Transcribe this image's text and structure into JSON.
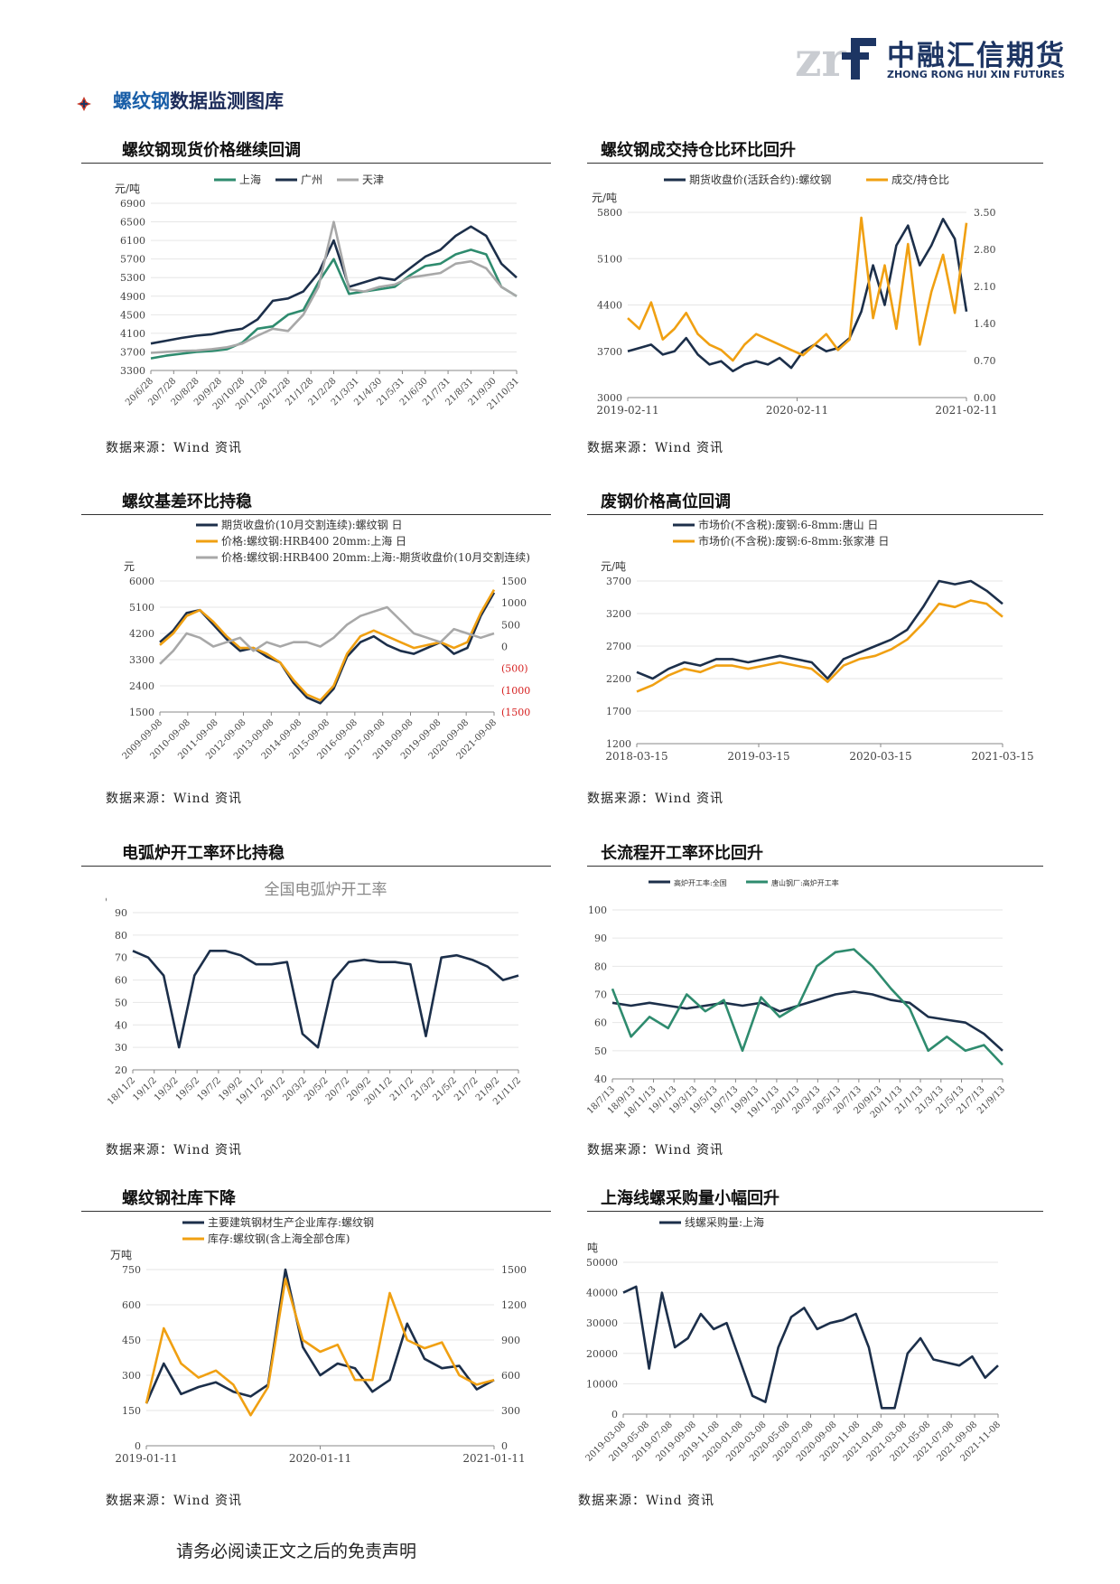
{
  "header": {
    "logo_mark": "zrf",
    "logo_cn": "中融汇信期货",
    "logo_en": "ZHONG RONG HUI XIN FUTURES",
    "section_title_hl": "螺纹钢",
    "section_title_rest": "数据监测图库"
  },
  "footer": {
    "disclaimer": "请务必阅读正文之后的免责声明"
  },
  "panels": [
    {
      "title": "螺纹钢现货价格继续回调",
      "source": "数据来源：Wind 资讯"
    },
    {
      "title": "螺纹钢成交持仓比环比回升",
      "source": "数据来源：Wind 资讯"
    },
    {
      "title": "螺纹基差环比持稳",
      "source": "数据来源：Wind 资讯"
    },
    {
      "title": "废钢价格高位回调",
      "source": "数据来源：Wind 资讯"
    },
    {
      "title": "电弧炉开工率环比持稳",
      "source": "数据来源：Wind 资讯"
    },
    {
      "title": "长流程开工率环比回升",
      "source": "数据来源：Wind 资讯"
    },
    {
      "title": "螺纹钢社库下降",
      "source": "数据来源：Wind 资讯"
    },
    {
      "title": "上海线螺采购量小幅回升",
      "source": "数据来源：Wind 资讯"
    }
  ],
  "chart_data": [
    {
      "type": "line",
      "unit": "元/吨",
      "ylim": [
        3300,
        6900
      ],
      "yticks": [
        "6900",
        "6500",
        "6100",
        "5700",
        "5300",
        "4900",
        "4500",
        "4100",
        "3700",
        "3300"
      ],
      "xticks": [
        "20/6/28",
        "20/7/28",
        "20/8/28",
        "20/9/28",
        "20/10/28",
        "20/11/28",
        "20/12/28",
        "21/1/28",
        "21/2/28",
        "21/3/31",
        "21/4/30",
        "21/5/31",
        "21/6/30",
        "21/7/31",
        "21/8/31",
        "21/9/30",
        "21/10/31"
      ],
      "series": [
        {
          "name": "上海",
          "color": "#2e8b6e",
          "values": [
            3560,
            3620,
            3660,
            3700,
            3720,
            3760,
            3900,
            4200,
            4250,
            4500,
            4600,
            5200,
            5700,
            4950,
            5000,
            5050,
            5100,
            5350,
            5550,
            5600,
            5800,
            5900,
            5800,
            5100,
            4900
          ]
        },
        {
          "name": "广州",
          "color": "#1c2f4a",
          "values": [
            3880,
            3940,
            4000,
            4050,
            4080,
            4150,
            4200,
            4400,
            4800,
            4850,
            5000,
            5400,
            6100,
            5100,
            5200,
            5300,
            5250,
            5500,
            5750,
            5900,
            6200,
            6400,
            6200,
            5600,
            5300
          ]
        },
        {
          "name": "天津",
          "color": "#a8a8a8",
          "values": [
            3680,
            3700,
            3720,
            3730,
            3760,
            3800,
            3880,
            4050,
            4200,
            4150,
            4500,
            5100,
            6500,
            5050,
            5000,
            5100,
            5150,
            5300,
            5350,
            5400,
            5600,
            5650,
            5500,
            5100,
            4900
          ]
        }
      ]
    },
    {
      "type": "line",
      "unit": "元/吨",
      "ylim": [
        3000,
        5800
      ],
      "yticks": [
        "5800",
        "5100",
        "4400",
        "3700",
        "3000"
      ],
      "y2ticks": [
        "3.50",
        "2.80",
        "2.10",
        "1.40",
        "0.70",
        "0.00"
      ],
      "y2lim": [
        0,
        3.5
      ],
      "xticks": [
        "2019-02-11",
        "2020-02-11",
        "2021-02-11"
      ],
      "series": [
        {
          "name": "期货收盘价(活跃合约):螺纹钢",
          "color": "#1c2f4a",
          "axis": "left",
          "values": [
            3700,
            3750,
            3800,
            3650,
            3700,
            3900,
            3650,
            3500,
            3550,
            3400,
            3500,
            3550,
            3500,
            3600,
            3450,
            3700,
            3800,
            3700,
            3750,
            3900,
            4300,
            5000,
            4400,
            5300,
            5600,
            5000,
            5300,
            5700,
            5400,
            4300
          ]
        },
        {
          "name": "成交/持仓比",
          "color": "#f0a012",
          "axis": "right",
          "values": [
            1.5,
            1.3,
            1.8,
            1.1,
            1.3,
            1.6,
            1.2,
            1.0,
            0.9,
            0.7,
            1.0,
            1.2,
            1.1,
            1.0,
            0.9,
            0.8,
            1.0,
            1.2,
            0.9,
            1.1,
            3.4,
            1.5,
            2.5,
            1.3,
            2.9,
            1.0,
            2.0,
            2.7,
            1.6,
            3.3
          ]
        }
      ]
    },
    {
      "type": "line",
      "unit": "元",
      "ylim": [
        1500,
        6000
      ],
      "yticks": [
        "6000",
        "5100",
        "4200",
        "3300",
        "2400",
        "1500"
      ],
      "y2ticks": [
        "1500",
        "1000",
        "500",
        "0",
        "(500)",
        "(1000)",
        "(1500)"
      ],
      "y2lim": [
        -1500,
        1500
      ],
      "xticks": [
        "2009-09-08",
        "2010-09-08",
        "2011-09-08",
        "2012-09-08",
        "2013-09-08",
        "2014-09-08",
        "2015-09-08",
        "2016-09-08",
        "2017-09-08",
        "2018-09-08",
        "2019-09-08",
        "2020-09-08",
        "2021-09-08"
      ],
      "series": [
        {
          "name": "期货收盘价(10月交割连续):螺纹钢 日",
          "color": "#1c2f4a",
          "axis": "left",
          "values": [
            3900,
            4300,
            4900,
            5000,
            4500,
            4000,
            3600,
            3700,
            3400,
            3200,
            2500,
            2000,
            1800,
            2300,
            3400,
            3900,
            4100,
            3800,
            3600,
            3500,
            3700,
            3900,
            3500,
            3700,
            4800,
            5600
          ]
        },
        {
          "name": "价格:螺纹钢:HRB400 20mm:上海 日",
          "color": "#f0a012",
          "axis": "left",
          "values": [
            3800,
            4200,
            4800,
            5000,
            4600,
            4100,
            3700,
            3700,
            3500,
            3200,
            2600,
            2100,
            1900,
            2400,
            3500,
            4100,
            4300,
            4100,
            3900,
            3700,
            3800,
            3900,
            3700,
            3900,
            4900,
            5700
          ]
        },
        {
          "name": "价格:螺纹钢:HRB400 20mm:上海:-期货收盘价(10月交割连续):螺纹钢 日",
          "color": "#a8a8a8",
          "axis": "right",
          "values": [
            -400,
            -100,
            300,
            200,
            0,
            100,
            200,
            -100,
            100,
            0,
            100,
            100,
            0,
            200,
            500,
            700,
            800,
            900,
            600,
            300,
            200,
            100,
            400,
            300,
            200,
            300
          ]
        }
      ]
    },
    {
      "type": "line",
      "unit": "元/吨",
      "ylim": [
        1200,
        3700
      ],
      "yticks": [
        "3700",
        "3200",
        "2700",
        "2200",
        "1700",
        "1200"
      ],
      "xticks": [
        "2018-03-15",
        "2019-03-15",
        "2020-03-15",
        "2021-03-15"
      ],
      "series": [
        {
          "name": "市场价(不含税):废钢:6-8mm:唐山 日",
          "color": "#1c2f4a",
          "values": [
            2300,
            2200,
            2350,
            2450,
            2400,
            2500,
            2500,
            2450,
            2500,
            2550,
            2500,
            2450,
            2200,
            2500,
            2600,
            2700,
            2800,
            2950,
            3300,
            3700,
            3650,
            3700,
            3550,
            3350
          ]
        },
        {
          "name": "市场价(不含税):废钢:6-8mm:张家港 日",
          "color": "#f0a012",
          "values": [
            2000,
            2100,
            2250,
            2350,
            2300,
            2400,
            2400,
            2350,
            2400,
            2450,
            2400,
            2350,
            2150,
            2400,
            2500,
            2550,
            2650,
            2800,
            3050,
            3350,
            3300,
            3400,
            3350,
            3150
          ]
        }
      ]
    },
    {
      "type": "line",
      "title": "全国电弧炉开工率",
      "unit": "%",
      "ylim": [
        20,
        90
      ],
      "yticks": [
        "90",
        "80",
        "70",
        "60",
        "50",
        "40",
        "30",
        "20"
      ],
      "xticks": [
        "18/11/2",
        "19/1/2",
        "19/3/2",
        "19/5/2",
        "19/7/2",
        "19/9/2",
        "19/11/2",
        "20/1/2",
        "20/3/2",
        "20/5/2",
        "20/7/2",
        "20/9/2",
        "20/11/2",
        "21/1/2",
        "21/3/2",
        "21/5/2",
        "21/7/2",
        "21/9/2",
        "21/11/2"
      ],
      "series": [
        {
          "name": "全国电弧炉开工率",
          "color": "#1c2f4a",
          "values": [
            73,
            70,
            62,
            30,
            62,
            73,
            73,
            71,
            67,
            67,
            68,
            36,
            30,
            60,
            68,
            69,
            68,
            68,
            67,
            35,
            70,
            71,
            69,
            66,
            60,
            62
          ]
        }
      ]
    },
    {
      "type": "line",
      "unit": "%",
      "ylim": [
        40,
        100
      ],
      "yticks": [
        "100",
        "90",
        "80",
        "70",
        "60",
        "50",
        "40"
      ],
      "xticks": [
        "18/7/13",
        "18/9/13",
        "18/11/13",
        "19/1/13",
        "19/3/13",
        "19/5/13",
        "19/7/13",
        "19/9/13",
        "19/11/13",
        "20/1/13",
        "20/3/13",
        "20/5/13",
        "20/7/13",
        "20/9/13",
        "20/11/13",
        "21/1/13",
        "21/3/13",
        "21/5/13",
        "21/7/13",
        "21/9/13"
      ],
      "series": [
        {
          "name": "高炉开工率:全国",
          "color": "#1c2f4a",
          "values": [
            67,
            66,
            67,
            66,
            65,
            66,
            67,
            66,
            67,
            64,
            66,
            68,
            70,
            71,
            70,
            68,
            67,
            62,
            61,
            60,
            56,
            50
          ]
        },
        {
          "name": "唐山钢厂:高炉开工率",
          "color": "#2e8b6e",
          "values": [
            72,
            55,
            62,
            58,
            70,
            64,
            68,
            50,
            69,
            62,
            66,
            80,
            85,
            86,
            80,
            72,
            65,
            50,
            55,
            50,
            52,
            45
          ]
        }
      ]
    },
    {
      "type": "line",
      "unit": "万吨",
      "ylim": [
        0,
        750
      ],
      "yticks": [
        "750",
        "600",
        "450",
        "300",
        "150",
        "0"
      ],
      "y2ticks": [
        "1500",
        "1200",
        "900",
        "600",
        "300",
        "0"
      ],
      "y2lim": [
        0,
        1500
      ],
      "xticks": [
        "2019-01-11",
        "2020-01-11",
        "2021-01-11"
      ],
      "series": [
        {
          "name": "主要建筑钢材生产企业库存:螺纹钢",
          "color": "#1c2f4a",
          "axis": "left",
          "values": [
            180,
            350,
            220,
            250,
            270,
            230,
            210,
            260,
            750,
            420,
            300,
            350,
            330,
            230,
            280,
            520,
            370,
            330,
            340,
            240,
            280
          ]
        },
        {
          "name": "库存:螺纹钢(含上海全部仓库)",
          "color": "#f0a012",
          "axis": "right",
          "values": [
            360,
            1000,
            700,
            580,
            640,
            520,
            260,
            500,
            1420,
            900,
            800,
            860,
            560,
            560,
            1300,
            900,
            830,
            880,
            600,
            520,
            560
          ]
        }
      ]
    },
    {
      "type": "line",
      "unit": "吨",
      "ylim": [
        0,
        50000
      ],
      "yticks": [
        "50000",
        "40000",
        "30000",
        "20000",
        "10000",
        "0"
      ],
      "xticks": [
        "2019-03-08",
        "2019-05-08",
        "2019-07-08",
        "2019-09-08",
        "2019-11-08",
        "2020-01-08",
        "2020-03-08",
        "2020-05-08",
        "2020-07-08",
        "2020-09-08",
        "2020-11-08",
        "2021-01-08",
        "2021-03-08",
        "2021-05-08",
        "2021-07-08",
        "2021-09-08",
        "2021-11-08"
      ],
      "series": [
        {
          "name": "线螺采购量:上海",
          "color": "#1c2f4a",
          "values": [
            40000,
            42000,
            15000,
            40000,
            22000,
            25000,
            33000,
            28000,
            30000,
            18000,
            6000,
            4000,
            22000,
            32000,
            35000,
            28000,
            30000,
            31000,
            33000,
            22000,
            2000,
            2000,
            20000,
            25000,
            18000,
            17000,
            16000,
            19000,
            12000,
            16000
          ]
        }
      ]
    }
  ]
}
